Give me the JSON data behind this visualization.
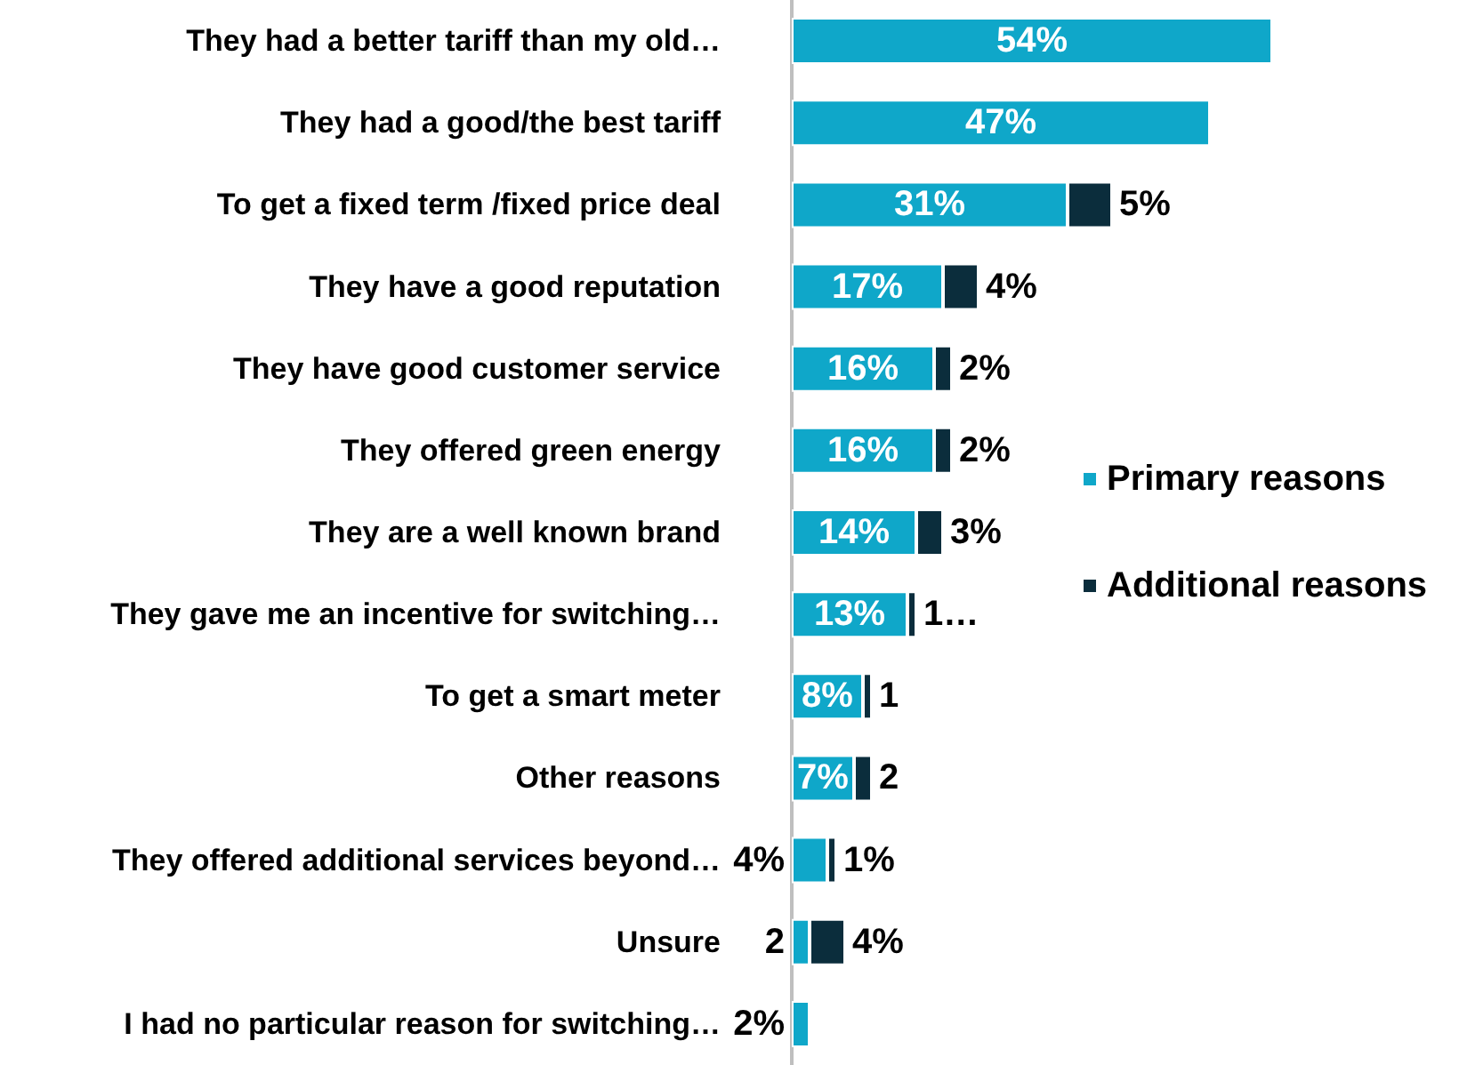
{
  "chart_data": {
    "type": "bar",
    "orientation": "horizontal",
    "stacked": true,
    "legend": "right",
    "categories": [
      "They had a better tariff than my old…",
      "They had a good/the best tariff",
      "To get a fixed term /fixed price deal",
      "They have a good reputation",
      "They have good customer service",
      "They offered green energy",
      "They are a well known brand",
      "They gave me an incentive for switching…",
      "To get a smart meter",
      "Other reasons",
      "They offered additional services beyond…",
      "Unsure",
      "I had no particular reason for switching…"
    ],
    "series": [
      {
        "name": "Primary reasons",
        "color": "#0fa7c9",
        "values": [
          54,
          47,
          31,
          17,
          16,
          16,
          14,
          13,
          8,
          7,
          4,
          2,
          2
        ],
        "value_labels": [
          "54%",
          "47%",
          "31%",
          "17%",
          "16%",
          "16%",
          "14%",
          "13%",
          "8%",
          "7%",
          "4%",
          "2",
          "2%"
        ]
      },
      {
        "name": "Additional reasons",
        "color": "#0b2d3c",
        "values": [
          null,
          null,
          5,
          4,
          2,
          2,
          3,
          1,
          1,
          2,
          1,
          4,
          null
        ],
        "value_labels": [
          null,
          null,
          "5%",
          "4%",
          "2%",
          "2%",
          "3%",
          "1…",
          "1",
          "2",
          "1%",
          "4%",
          null
        ]
      }
    ]
  }
}
